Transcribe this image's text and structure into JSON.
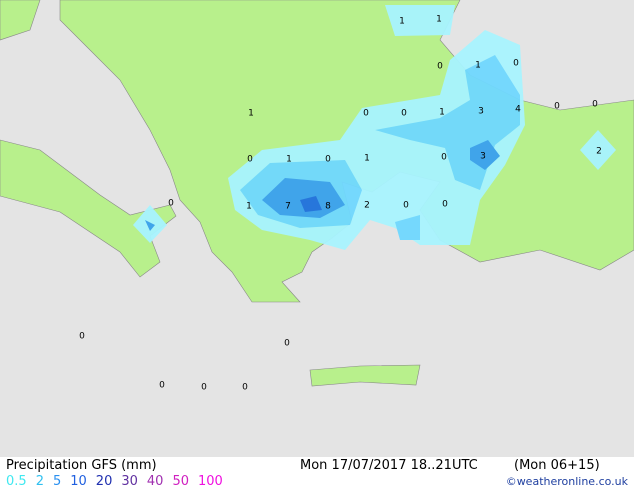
{
  "title": "Precipitation GFS (mm)",
  "valid_time": "Mon 17/07/2017 18..21UTC",
  "run_info": "(Mon 06+15)",
  "credit": "©weatheronline.co.uk",
  "legend": {
    "values": [
      0.5,
      2,
      5,
      10,
      20,
      30,
      40,
      50,
      100
    ],
    "colors": [
      "#40e8f0",
      "#30c0f0",
      "#2a90f0",
      "#2060e0",
      "#2030b0",
      "#6030a0",
      "#a030b0",
      "#d020c0",
      "#f010e0"
    ]
  },
  "map_labels": [
    1,
    1,
    0,
    1,
    0,
    1,
    0,
    0,
    1,
    3,
    4,
    0,
    0,
    0,
    1,
    0,
    1,
    0,
    3,
    2,
    0,
    1,
    7,
    8,
    2,
    0,
    0,
    0,
    0,
    0,
    0,
    0
  ]
}
